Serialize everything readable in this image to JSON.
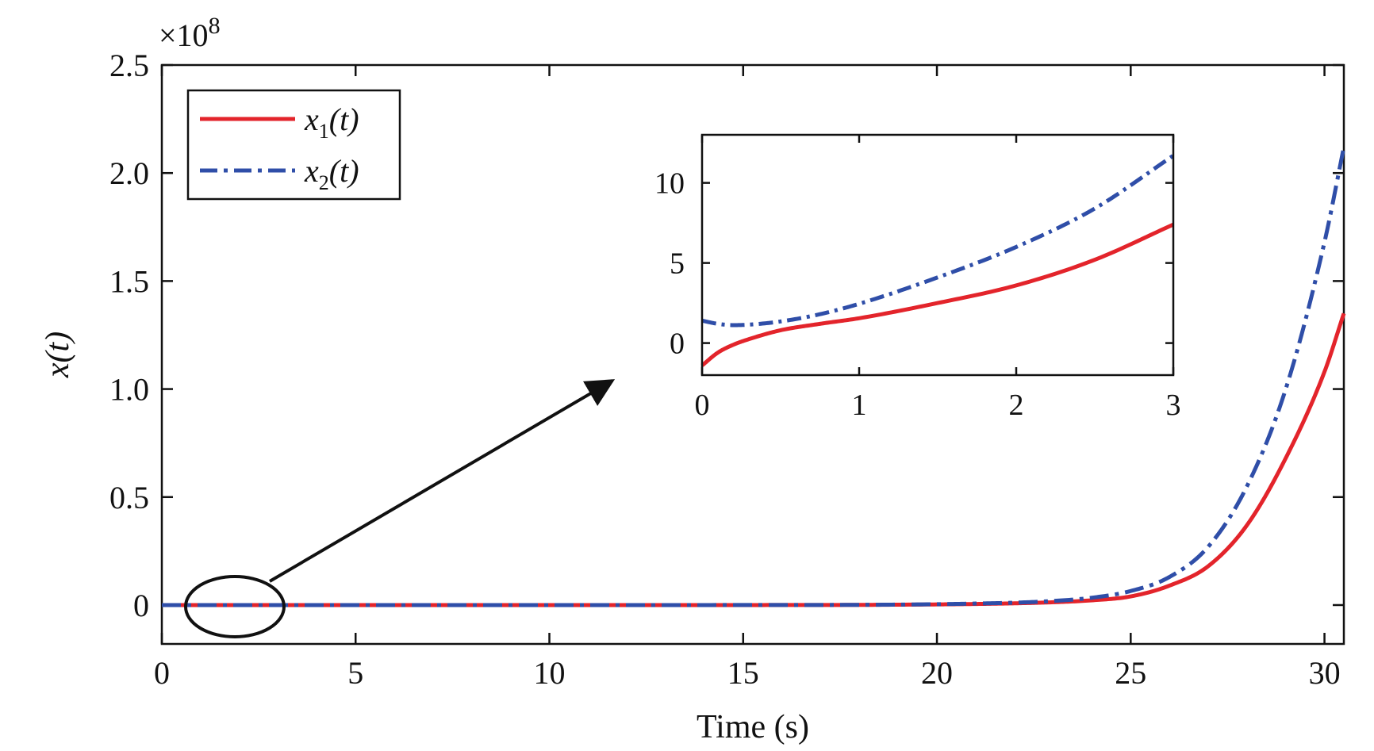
{
  "chart_data": [
    {
      "type": "line",
      "ylabel": "x(t)",
      "xlabel": "Time (s)",
      "y_exponent_label": "×10",
      "y_exponent_power": "8",
      "y_scale_factor": 100000000,
      "xlim": [
        0,
        30.5
      ],
      "ylim": [
        -0.18,
        2.5
      ],
      "x_ticks": [
        0,
        5,
        10,
        15,
        20,
        25,
        30
      ],
      "x_tick_labels": [
        "0",
        "5",
        "10",
        "15",
        "20",
        "25",
        "30"
      ],
      "y_ticks": [
        0,
        0.5,
        1.0,
        1.5,
        2.0,
        2.5
      ],
      "y_tick_labels": [
        "0",
        "0.5",
        "1.0",
        "1.5",
        "2.0",
        "2.5"
      ],
      "grid": false,
      "legend_position": "top-left",
      "series": [
        {
          "name": "x1(t)",
          "legend_main": "x",
          "legend_sub": "1",
          "legend_tail": "(t)",
          "color": "#e3242b",
          "style": "solid",
          "x": [
            0,
            5,
            10,
            15,
            18,
            20,
            21,
            22,
            23,
            24,
            25,
            26,
            27,
            28,
            29,
            30,
            30.5
          ],
          "y": [
            0,
            0,
            0,
            0.0001,
            0.0008,
            0.003,
            0.005,
            0.008,
            0.013,
            0.022,
            0.04,
            0.09,
            0.18,
            0.37,
            0.68,
            1.08,
            1.35
          ]
        },
        {
          "name": "x2(t)",
          "legend_main": "x",
          "legend_sub": "2",
          "legend_tail": "(t)",
          "color": "#2f4ea8",
          "style": "dashdot",
          "x": [
            0,
            5,
            10,
            15,
            18,
            20,
            21,
            22,
            23,
            24,
            25,
            26,
            27,
            28,
            29,
            30,
            30.5
          ],
          "y": [
            0,
            0,
            0,
            0.0002,
            0.001,
            0.004,
            0.007,
            0.011,
            0.019,
            0.034,
            0.065,
            0.13,
            0.27,
            0.55,
            1.0,
            1.68,
            2.12
          ]
        }
      ]
    },
    {
      "type": "line",
      "role": "inset",
      "xlim": [
        0,
        3
      ],
      "ylim": [
        -2,
        13
      ],
      "x_ticks": [
        0,
        1,
        2,
        3
      ],
      "x_tick_labels": [
        "0",
        "1",
        "2",
        "3"
      ],
      "y_ticks": [
        0,
        5,
        10
      ],
      "y_tick_labels": [
        "0",
        "5",
        "10"
      ],
      "grid": false,
      "series": [
        {
          "name": "x1(t)",
          "color": "#e3242b",
          "style": "solid",
          "x": [
            0,
            0.1,
            0.2,
            0.3,
            0.5,
            0.75,
            1.0,
            1.5,
            2.0,
            2.5,
            3.0
          ],
          "y": [
            -1.4,
            -0.6,
            -0.1,
            0.25,
            0.8,
            1.2,
            1.55,
            2.5,
            3.6,
            5.2,
            7.4
          ]
        },
        {
          "name": "x2(t)",
          "color": "#2f4ea8",
          "style": "dashdot",
          "x": [
            0,
            0.1,
            0.2,
            0.3,
            0.5,
            0.75,
            1.0,
            1.5,
            2.0,
            2.5,
            3.0
          ],
          "y": [
            1.4,
            1.2,
            1.12,
            1.15,
            1.35,
            1.8,
            2.45,
            4.1,
            6.0,
            8.4,
            11.7
          ]
        }
      ]
    }
  ]
}
